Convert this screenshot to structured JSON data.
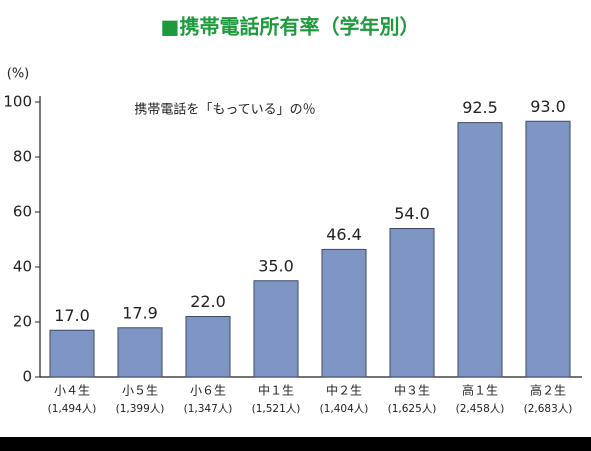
{
  "chart_data": {
    "type": "bar",
    "title": "■携帯電話所有率（学年別）",
    "y_label": "(%)",
    "annotation": "携帯電話を「もっている」の％",
    "categories": [
      "小４生",
      "小５生",
      "小６生",
      "中１生",
      "中２生",
      "中３生",
      "高１生",
      "高２生"
    ],
    "sample_sizes": [
      "(1,494人)",
      "(1,399人)",
      "(1,347人)",
      "(1,521人)",
      "(1,404人)",
      "(1,625人)",
      "(2,458人)",
      "(2,683人)"
    ],
    "values": [
      17.0,
      17.9,
      22.0,
      35.0,
      46.4,
      54.0,
      92.5,
      93.0
    ],
    "value_labels": [
      "17.0",
      "17.9",
      "22.0",
      "35.0",
      "46.4",
      "54.0",
      "92.5",
      "93.0"
    ],
    "color": "#7f96c4",
    "title_color": "#1d9a3c",
    "ylim": [
      0,
      100
    ],
    "yticks": [
      0,
      20,
      40,
      60,
      80,
      100
    ],
    "grid": false
  }
}
